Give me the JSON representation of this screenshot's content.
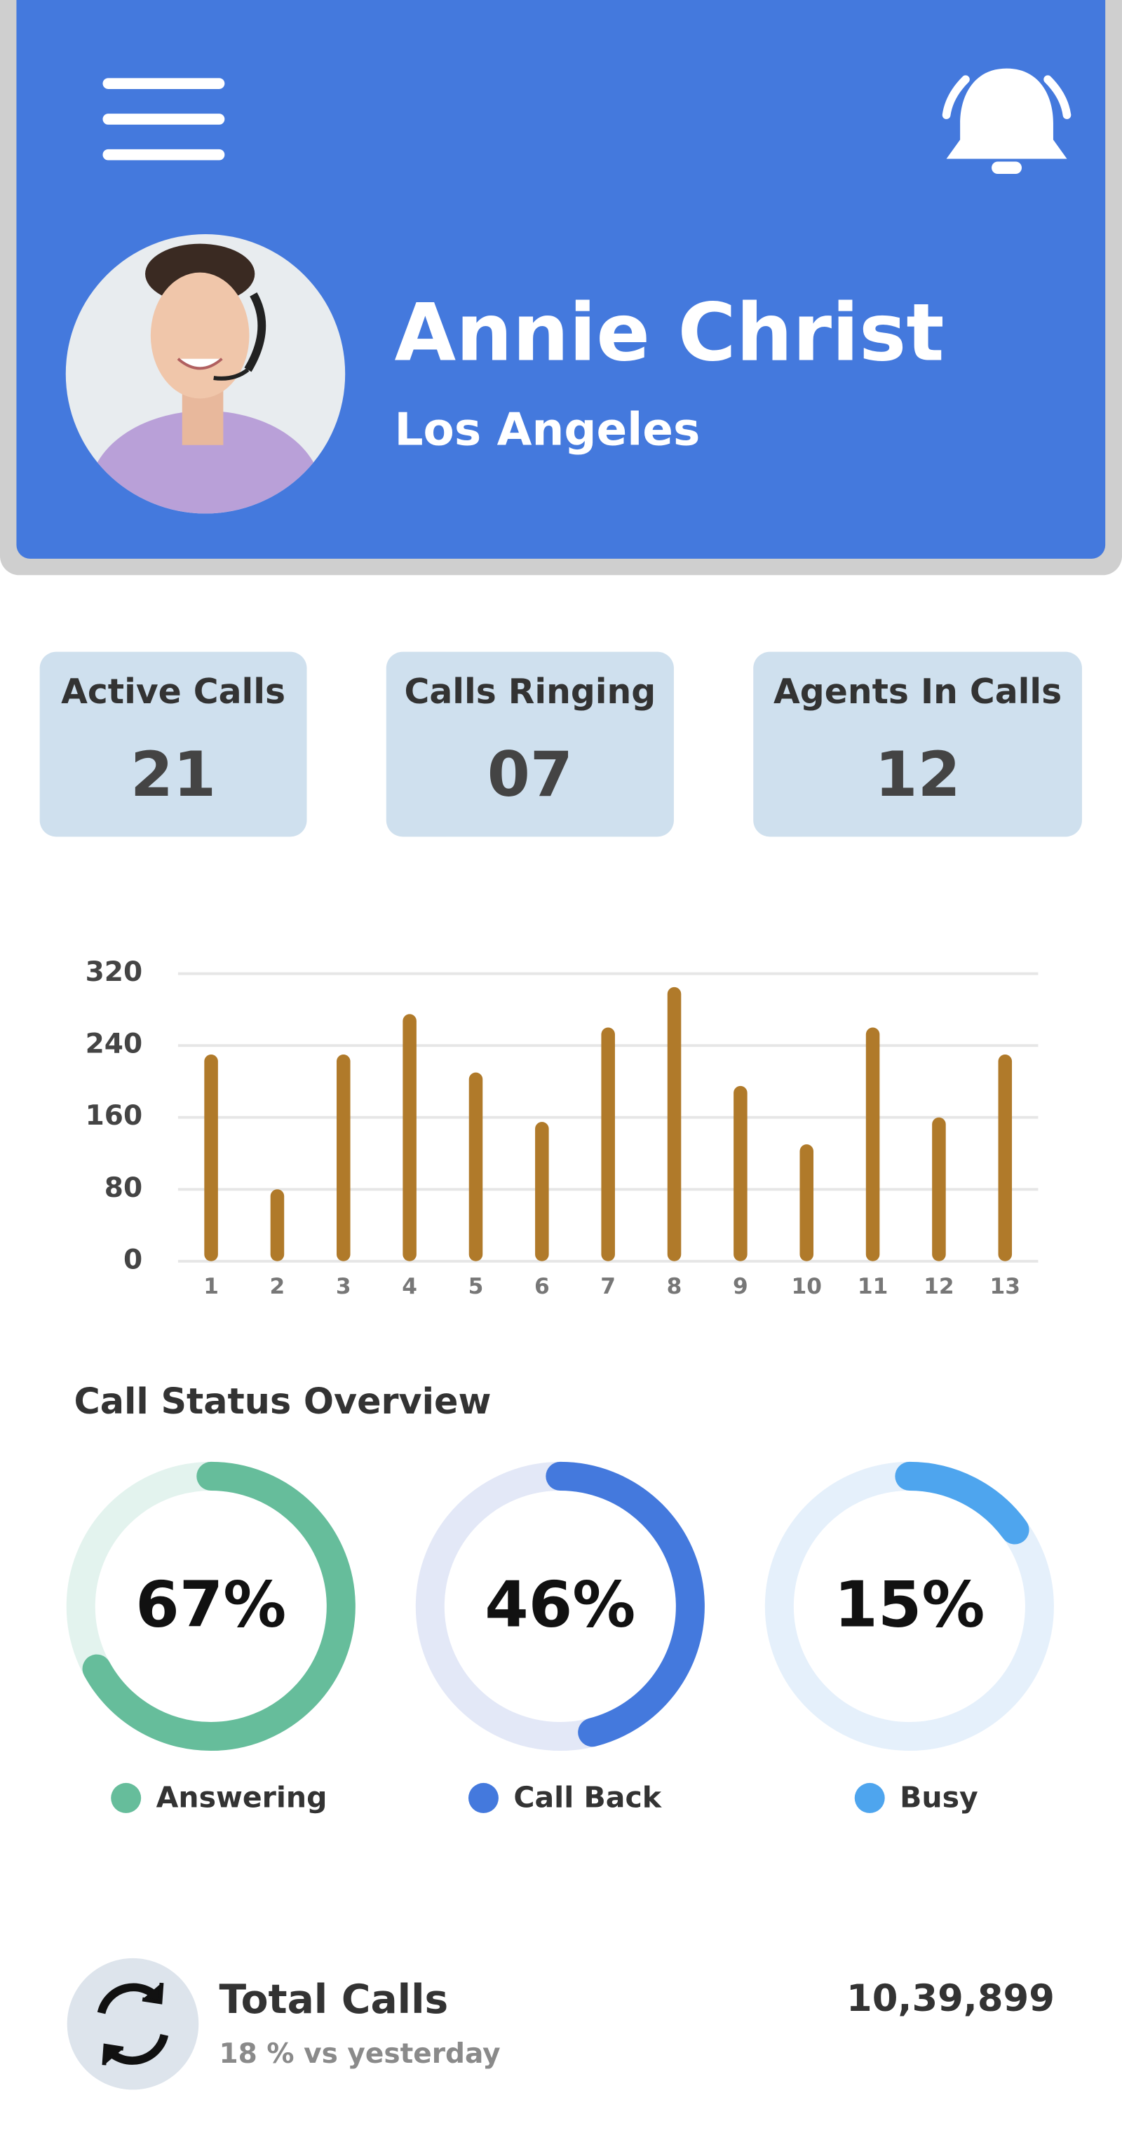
{
  "header": {
    "name": "Annie Christ",
    "location": "Los Angeles"
  },
  "stats": [
    {
      "label": "Active Calls",
      "value": "21"
    },
    {
      "label": "Calls Ringing",
      "value": "07"
    },
    {
      "label": "Agents In Calls",
      "value": "12"
    }
  ],
  "chart_data": {
    "type": "bar",
    "categories": [
      "1",
      "2",
      "3",
      "4",
      "5",
      "6",
      "7",
      "8",
      "9",
      "10",
      "11",
      "12",
      "13"
    ],
    "values": [
      230,
      80,
      230,
      275,
      210,
      155,
      260,
      305,
      195,
      130,
      260,
      160,
      230
    ],
    "color": "#b07a2a",
    "ylim": [
      0,
      320
    ],
    "yticks": [
      0,
      80,
      160,
      240,
      320
    ],
    "grid": true
  },
  "status": {
    "title": "Call Status Overview",
    "items": [
      {
        "name": "Answering",
        "value": 67,
        "label": "67%",
        "color": "#66bd9b",
        "track": "#e3f3ee"
      },
      {
        "name": "Call Back",
        "value": 46,
        "label": "46%",
        "color": "#4479dd",
        "track": "#e3e8f7"
      },
      {
        "name": "Busy",
        "value": 15,
        "label": "15%",
        "color": "#4ea5ee",
        "track": "#e5f0fb"
      }
    ]
  },
  "total": {
    "title": "Total Calls",
    "subtitle": "18 % vs yesterday",
    "value": "10,39,899"
  }
}
